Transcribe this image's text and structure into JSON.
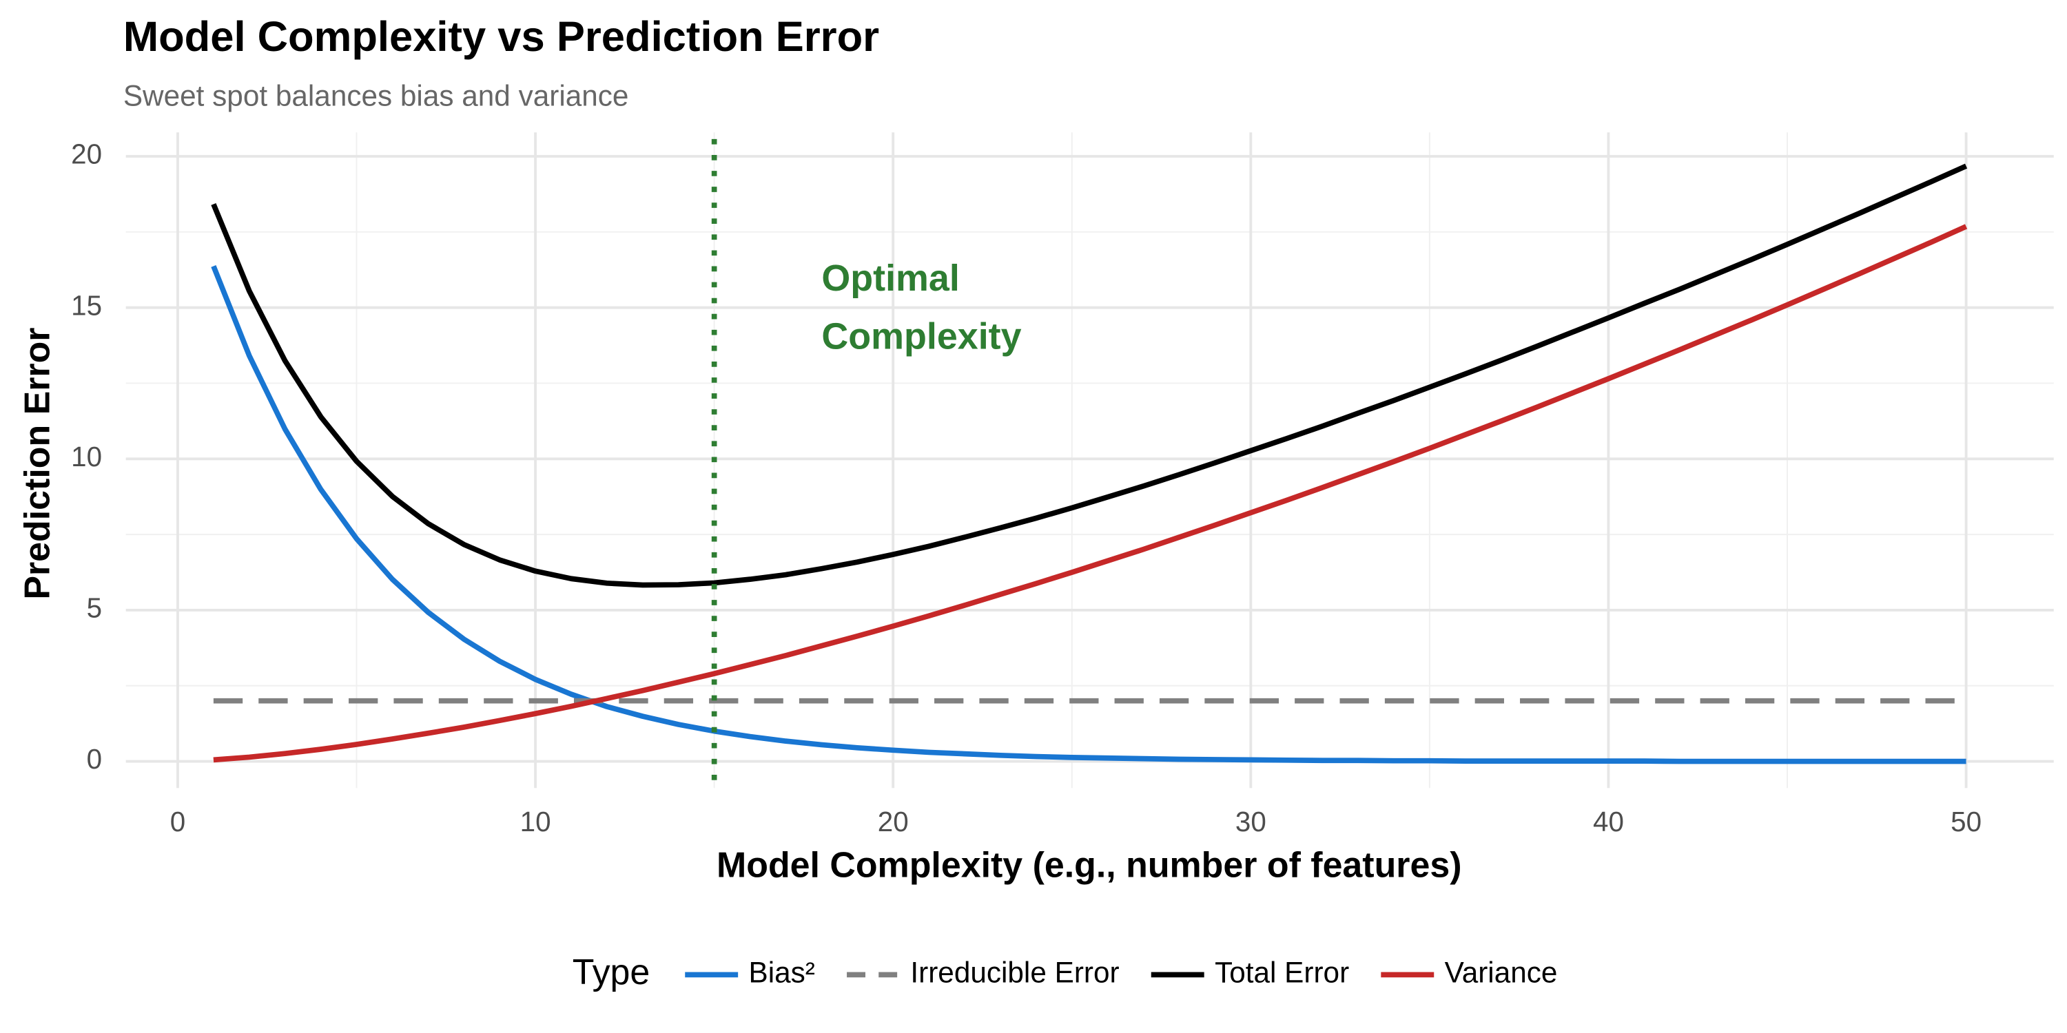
{
  "chart_data": {
    "type": "line",
    "title": "Model Complexity vs Prediction Error",
    "subtitle": "Sweet spot balances bias and variance",
    "xlabel": "Model Complexity (e.g., number of features)",
    "ylabel": "Prediction Error",
    "legend_title": "Type",
    "legend_position": "bottom",
    "grid": true,
    "x": [
      1,
      2,
      3,
      4,
      5,
      6,
      7,
      8,
      9,
      10,
      11,
      12,
      13,
      14,
      15,
      16,
      17,
      18,
      19,
      20,
      21,
      22,
      23,
      24,
      25,
      26,
      27,
      28,
      29,
      30,
      31,
      32,
      33,
      34,
      35,
      36,
      37,
      38,
      39,
      40,
      41,
      42,
      43,
      44,
      45,
      46,
      47,
      48,
      49,
      50
    ],
    "series": [
      {
        "name": "Bias²",
        "color": "#1976D2",
        "linetype": "solid",
        "values": [
          16.37,
          13.41,
          10.98,
          8.99,
          7.36,
          6.02,
          4.93,
          4.04,
          3.31,
          2.71,
          2.22,
          1.81,
          1.49,
          1.22,
          1.0,
          0.82,
          0.67,
          0.55,
          0.45,
          0.37,
          0.3,
          0.25,
          0.2,
          0.16,
          0.13,
          0.11,
          0.09,
          0.07,
          0.06,
          0.05,
          0.04,
          0.03,
          0.03,
          0.02,
          0.02,
          0.01,
          0.01,
          0.01,
          0.01,
          0.01,
          0.01,
          0,
          0,
          0,
          0,
          0,
          0,
          0,
          0,
          0
        ]
      },
      {
        "name": "Irreducible Error",
        "color": "#808080",
        "linetype": "dashed",
        "values": [
          2,
          2,
          2,
          2,
          2,
          2,
          2,
          2,
          2,
          2,
          2,
          2,
          2,
          2,
          2,
          2,
          2,
          2,
          2,
          2,
          2,
          2,
          2,
          2,
          2,
          2,
          2,
          2,
          2,
          2,
          2,
          2,
          2,
          2,
          2,
          2,
          2,
          2,
          2,
          2,
          2,
          2,
          2,
          2,
          2,
          2,
          2,
          2,
          2,
          2
        ]
      },
      {
        "name": "Total Error",
        "color": "#000000",
        "linetype": "solid",
        "values": [
          18.42,
          15.55,
          13.24,
          11.39,
          9.92,
          8.76,
          7.86,
          7.17,
          6.66,
          6.29,
          6.04,
          5.89,
          5.83,
          5.84,
          5.9,
          6.02,
          6.17,
          6.37,
          6.59,
          6.84,
          7.11,
          7.41,
          7.72,
          8.04,
          8.38,
          8.74,
          9.1,
          9.48,
          9.87,
          10.27,
          10.67,
          11.08,
          11.51,
          11.93,
          12.37,
          12.81,
          13.26,
          13.72,
          14.19,
          14.66,
          15.14,
          15.61,
          16.1,
          16.59,
          17.09,
          17.6,
          18.11,
          18.63,
          19.15,
          19.68
        ]
      },
      {
        "name": "Variance",
        "color": "#C62828",
        "linetype": "solid",
        "values": [
          0.05,
          0.14,
          0.26,
          0.4,
          0.56,
          0.74,
          0.93,
          1.13,
          1.35,
          1.58,
          1.82,
          2.08,
          2.34,
          2.62,
          2.9,
          3.2,
          3.5,
          3.82,
          4.14,
          4.47,
          4.81,
          5.16,
          5.52,
          5.88,
          6.25,
          6.63,
          7.01,
          7.41,
          7.81,
          8.22,
          8.63,
          9.05,
          9.48,
          9.91,
          10.35,
          10.8,
          11.25,
          11.71,
          12.18,
          12.65,
          13.13,
          13.61,
          14.1,
          14.59,
          15.09,
          15.6,
          16.11,
          16.63,
          17.15,
          17.68
        ]
      }
    ],
    "vline": {
      "value": 15,
      "color": "#2E7D32"
    },
    "annotation": {
      "lines": [
        "Optimal",
        "Complexity"
      ],
      "color": "#2E7D32"
    },
    "xlim": [
      -1.45,
      52.45
    ],
    "xticks": [
      0,
      10,
      20,
      30,
      40,
      50
    ],
    "ylim": [
      -0.88,
      20.79
    ],
    "yticks": [
      0,
      5,
      10,
      15,
      20
    ]
  }
}
